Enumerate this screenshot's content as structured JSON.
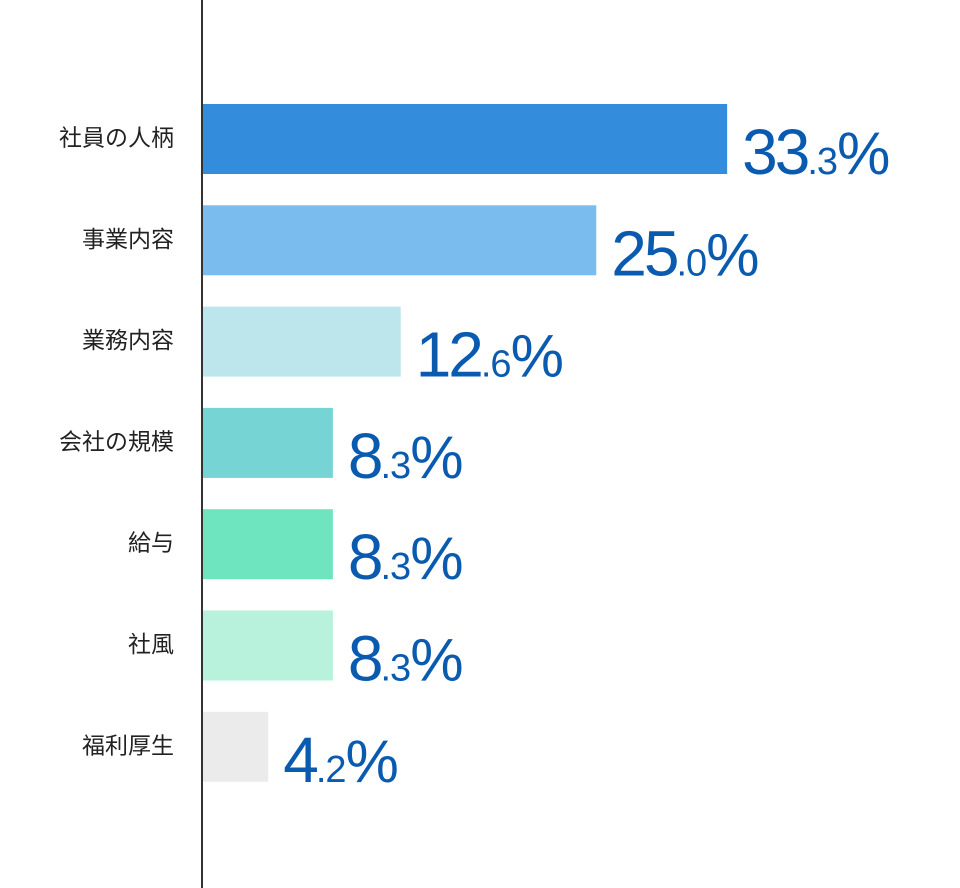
{
  "chart_data": {
    "type": "bar",
    "orientation": "horizontal",
    "categories": [
      "社員の人柄",
      "事業内容",
      "業務内容",
      "会社の規模",
      "給与",
      "社風",
      "福利厚生"
    ],
    "values": [
      33.3,
      25.0,
      12.6,
      8.3,
      8.3,
      8.3,
      4.2
    ],
    "value_labels": [
      "33.3%",
      "25.0%",
      "12.6%",
      "8.3%",
      "8.3%",
      "8.3%",
      "4.2%"
    ],
    "unit": "%",
    "xlim": [
      0,
      61
    ],
    "grid": false,
    "legend": "none",
    "colors": [
      "#348cdc",
      "#79bced",
      "#bce6ec",
      "#76d5d4",
      "#6ee4bf",
      "#b8f1dc",
      "#ebebeb"
    ],
    "value_label_color": "#0a5bb0",
    "axis_color": "#333333"
  }
}
